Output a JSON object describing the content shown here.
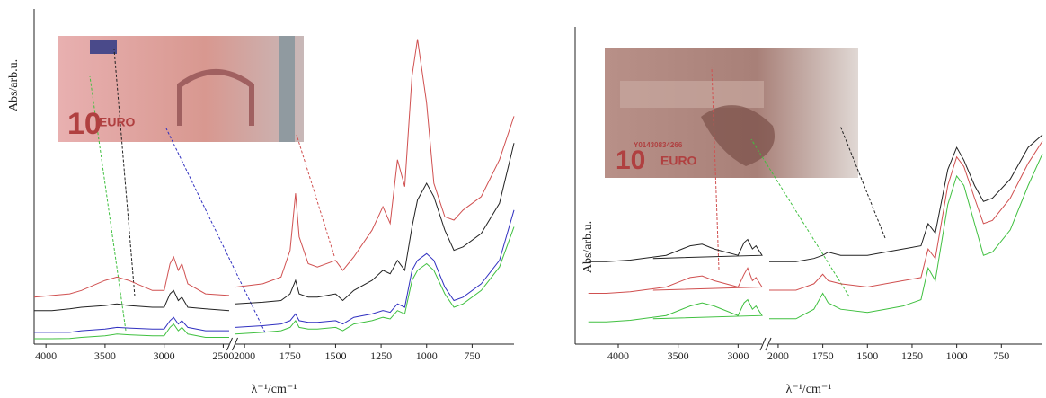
{
  "chart_data": [
    {
      "type": "line",
      "y_label": "Abs/arb.u.",
      "x_label": "λ⁻¹/cm⁻¹",
      "inset_texts": [
        "10",
        "EURO"
      ],
      "xlim": [
        4100,
        520
      ],
      "xbreak": [
        2450,
        2050
      ],
      "ylim": [
        0,
        100
      ],
      "xticks": [
        4000,
        3500,
        3000,
        2500,
        2000,
        1750,
        1500,
        1250,
        1000,
        750
      ],
      "x": [
        4100,
        3950,
        3800,
        3700,
        3500,
        3400,
        3300,
        3100,
        3000,
        2950,
        2920,
        2880,
        2850,
        2800,
        2650,
        2450,
        2250,
        2050,
        1900,
        1800,
        1750,
        1720,
        1700,
        1650,
        1600,
        1500,
        1460,
        1400,
        1300,
        1240,
        1200,
        1160,
        1120,
        1080,
        1050,
        1000,
        960,
        900,
        850,
        800,
        700,
        600,
        520
      ],
      "series": [
        {
          "color": "#d05050",
          "values": [
            14,
            14.5,
            15,
            16,
            19,
            20,
            19,
            16,
            16,
            24,
            26,
            22,
            24,
            18,
            15,
            14.5,
            null,
            17,
            18,
            20,
            28,
            45,
            32,
            24,
            23,
            25,
            22,
            26,
            34,
            41,
            36,
            55,
            47,
            80,
            91,
            72,
            48,
            38,
            37,
            40,
            44,
            55,
            68
          ]
        },
        {
          "color": "#222222",
          "values": [
            10,
            10,
            10.5,
            11,
            11.5,
            12,
            11.5,
            11,
            11,
            15,
            16,
            13,
            14,
            11,
            10.5,
            10,
            null,
            12,
            12.5,
            13,
            15,
            19,
            15,
            14,
            14,
            15,
            13,
            16,
            19,
            22,
            21,
            25,
            22,
            35,
            43,
            48,
            44,
            34,
            28,
            29,
            33,
            42,
            60
          ]
        },
        {
          "color": "#3030c0",
          "values": [
            3.5,
            3.5,
            3.5,
            4,
            4.5,
            5,
            4.8,
            4.5,
            4.5,
            7,
            8,
            6,
            7,
            5,
            4,
            4,
            null,
            5,
            5.5,
            6,
            7,
            9,
            7,
            6.5,
            6.5,
            7,
            6,
            8,
            9,
            10,
            9.5,
            12,
            11,
            22,
            25,
            27,
            25,
            17,
            13,
            14,
            18,
            25,
            40
          ]
        },
        {
          "color": "#40c040",
          "values": [
            1.6,
            1.6,
            1.7,
            2,
            2.5,
            3,
            2.8,
            2.5,
            2.5,
            5,
            6,
            4,
            5,
            3,
            2,
            2,
            null,
            3,
            3.5,
            4,
            5,
            7,
            5,
            4.5,
            4.5,
            5,
            4,
            6,
            7,
            8,
            7.5,
            10,
            9,
            19,
            22,
            24,
            22,
            15,
            11,
            12,
            16,
            23,
            35
          ]
        }
      ]
    },
    {
      "type": "line",
      "y_label": "Abs/arb.u.",
      "x_label": "λ⁻¹/cm⁻¹",
      "inset_texts": [
        "10",
        "EURO",
        "Y01430834266"
      ],
      "xlim": [
        4300,
        520
      ],
      "xbreak": [
        2800,
        2050
      ],
      "ylim": [
        0,
        100
      ],
      "xticks": [
        4000,
        3500,
        3000,
        2000,
        1750,
        1500,
        1250,
        1000,
        750
      ],
      "x": [
        4250,
        4100,
        3900,
        3600,
        3400,
        3300,
        3200,
        3000,
        2950,
        2920,
        2880,
        2850,
        2800,
        2700,
        2250,
        2050,
        1900,
        1800,
        1750,
        1720,
        1650,
        1500,
        1400,
        1300,
        1200,
        1160,
        1120,
        1050,
        1000,
        960,
        900,
        850,
        800,
        700,
        600,
        520
      ],
      "series": [
        {
          "color": "#222222",
          "values": [
            26,
            26,
            26.5,
            28,
            31,
            31.5,
            30,
            28,
            32,
            33,
            30,
            31,
            28,
            27,
            null,
            26,
            26,
            27,
            28,
            29,
            28,
            28,
            29,
            30,
            31,
            38,
            35,
            55,
            62,
            58,
            50,
            45,
            46,
            52,
            62,
            66
          ]
        },
        {
          "color": "#d05050",
          "values": [
            16,
            16,
            16.5,
            18,
            21,
            21.5,
            20,
            18,
            22,
            24,
            20,
            21,
            18,
            17,
            null,
            17,
            17,
            19,
            22,
            20,
            19,
            18,
            19,
            20,
            21,
            30,
            27,
            50,
            59,
            56,
            46,
            38,
            39,
            46,
            57,
            64
          ]
        },
        {
          "color": "#40c040",
          "values": [
            7,
            7,
            7.5,
            9,
            12,
            13,
            12,
            9,
            13,
            14,
            11,
            12,
            9,
            8,
            null,
            8,
            8,
            11,
            16,
            13,
            11,
            10,
            11,
            12,
            14,
            24,
            20,
            44,
            53,
            50,
            38,
            28,
            29,
            36,
            50,
            60
          ]
        }
      ]
    }
  ]
}
